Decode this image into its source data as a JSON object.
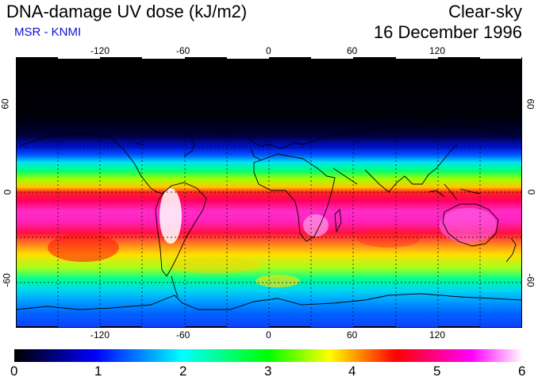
{
  "header": {
    "title": "DNA-damage UV dose (kJ/m2)",
    "source": "MSR - KNMI",
    "condition": "Clear-sky",
    "date": "16 December 1996"
  },
  "map": {
    "projection": "equirectangular",
    "lon_range": [
      -180,
      180
    ],
    "lat_range": [
      -90,
      90
    ],
    "lon_tick_labels": [
      "-120",
      "-60",
      "0",
      "60",
      "120"
    ],
    "lat_tick_labels": [
      "60",
      "0",
      "-60"
    ],
    "grid_lines": "dotted every 30 degrees"
  },
  "colorbar": {
    "labels": [
      "0",
      "1",
      "2",
      "3",
      "4",
      "5",
      "6"
    ],
    "colors": [
      "#000000",
      "#0000ff",
      "#00ffff",
      "#00ff00",
      "#ffff00",
      "#ff0000",
      "#ff00ff",
      "#ffffff"
    ]
  }
}
